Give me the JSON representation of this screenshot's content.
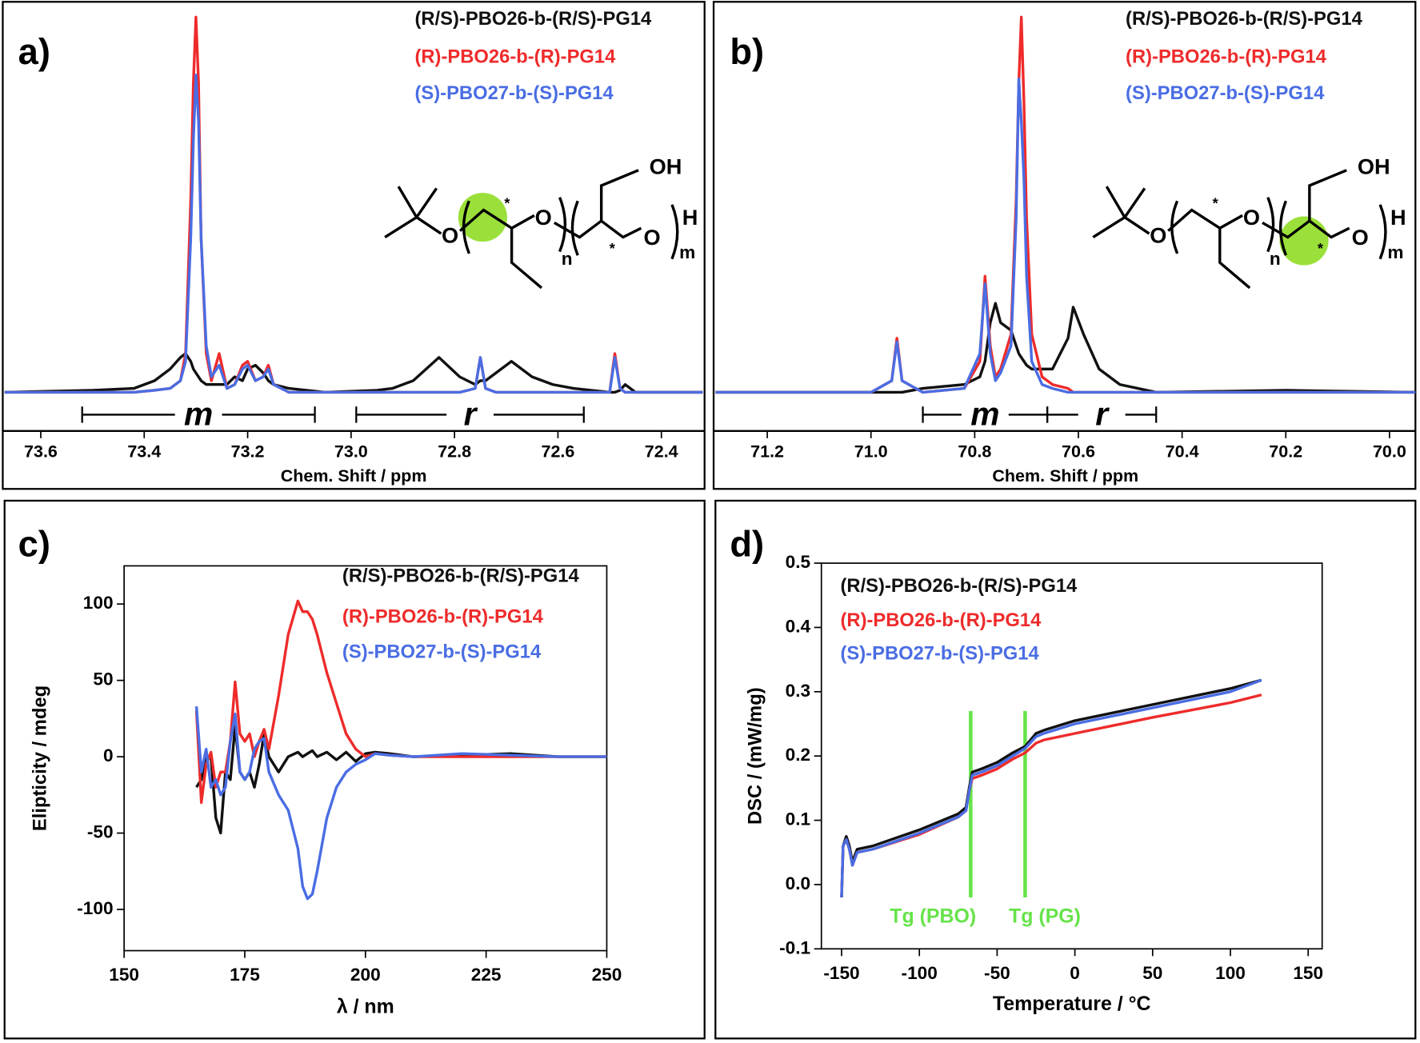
{
  "chart_data": [
    {
      "type": "line",
      "panel_label": "a)",
      "xlabel": "Chem. Shift / ppm",
      "x": [
        73.67,
        73.5,
        73.42,
        73.38,
        73.35,
        73.33,
        73.32,
        73.31,
        73.305,
        73.3,
        73.295,
        73.29,
        73.28,
        73.27,
        73.255,
        73.24,
        73.225,
        73.21,
        73.2,
        73.185,
        73.17,
        73.16,
        73.15,
        73.12,
        73.05,
        72.95,
        72.92,
        72.88,
        72.83,
        72.79,
        72.76,
        72.75,
        72.74,
        72.72,
        72.69,
        72.65,
        72.61,
        72.57,
        72.5,
        72.49,
        72.48,
        72.47,
        72.45,
        72.32
      ],
      "xlim": [
        73.67,
        72.32
      ],
      "xticks": [
        73.6,
        73.4,
        73.2,
        {
          "value": 73,
          "label": "73.0"
        },
        72.8,
        72.6,
        72.4
      ],
      "ylim": [
        -10,
        100
      ],
      "series": [
        {
          "name": "(R/S)-PBO26-b-(R/S)-PG14",
          "color": "#111111",
          "values": [
            0,
            0.5,
            1,
            3,
            6,
            9,
            10,
            8,
            6,
            5,
            4,
            3,
            2,
            2,
            2,
            2,
            4,
            3,
            6,
            7,
            5,
            3,
            2,
            1,
            0,
            0.5,
            1,
            3,
            9,
            4,
            2,
            3,
            3,
            5,
            8,
            4,
            2,
            1,
            0,
            0,
            0.5,
            2,
            0,
            0
          ]
        },
        {
          "name": "(R)-PBO26-b-(R)-PG14",
          "color": "#ee2b2b",
          "values": [
            0,
            0,
            0,
            0.5,
            1,
            3,
            10,
            50,
            80,
            97,
            80,
            40,
            10,
            3,
            10,
            1,
            2,
            7,
            8,
            3,
            4,
            7,
            2,
            0,
            0,
            0,
            0,
            0,
            0,
            0,
            1,
            9,
            1,
            0,
            0,
            0,
            0,
            0,
            0,
            10,
            1,
            0,
            0,
            0
          ]
        },
        {
          "name": "(S)-PBO27-b-(S)-PG14",
          "color": "#4a6de3",
          "values": [
            0,
            0,
            0,
            0.5,
            1,
            3,
            8,
            40,
            65,
            82,
            70,
            40,
            12,
            4,
            7,
            1,
            2,
            6,
            7,
            3,
            4,
            6,
            2,
            0,
            0,
            0,
            0,
            0,
            0,
            0,
            1,
            9,
            1,
            0,
            0,
            0,
            0,
            0,
            0,
            9,
            1,
            0,
            0,
            0
          ]
        }
      ],
      "brackets": [
        {
          "text": "m",
          "x": [
            73.52,
            73.07
          ]
        },
        {
          "text": "r",
          "x": [
            72.99,
            72.55
          ]
        }
      ],
      "structure_labels": [
        "O",
        "O",
        "O",
        "OH",
        "H",
        "n",
        "m",
        "*",
        "*"
      ]
    },
    {
      "type": "line",
      "panel_label": "b)",
      "xlabel": "Chem. Shift / ppm",
      "x": [
        71.3,
        71.0,
        70.96,
        70.95,
        70.94,
        70.9,
        70.82,
        70.79,
        70.78,
        70.77,
        70.76,
        70.75,
        70.73,
        70.72,
        70.715,
        70.71,
        70.705,
        70.7,
        70.69,
        70.67,
        70.65,
        70.62,
        70.61,
        70.59,
        70.56,
        70.52,
        70.45,
        70.2,
        69.95
      ],
      "xlim": [
        71.3,
        69.95
      ],
      "xticks": [
        71.2,
        {
          "value": 71,
          "label": "71.0"
        },
        70.8,
        70.6,
        70.4,
        70.2,
        {
          "value": 70,
          "label": "70.0"
        }
      ],
      "ylim": [
        -10,
        100
      ],
      "series": [
        {
          "name": "(R/S)-PBO26-b-(R/S)-PG14",
          "color": "#111111",
          "values": [
            0,
            0,
            0,
            0,
            0,
            1,
            2,
            4,
            8,
            18,
            23,
            18,
            16,
            12,
            10,
            9,
            8,
            7,
            6,
            6,
            6,
            14,
            22,
            15,
            6,
            2,
            0,
            0.5,
            0
          ]
        },
        {
          "name": "(R)-PBO26-b-(R)-PG14",
          "color": "#ee2b2b",
          "values": [
            0,
            0,
            3,
            14,
            3,
            0,
            1,
            8,
            30,
            12,
            4,
            6,
            15,
            50,
            80,
            97,
            75,
            45,
            15,
            4,
            2,
            1,
            0,
            0,
            0,
            0,
            0,
            0,
            0
          ]
        },
        {
          "name": "(S)-PBO27-b-(S)-PG14",
          "color": "#4a6de3",
          "values": [
            0,
            0,
            3,
            13,
            3,
            0,
            1,
            10,
            28,
            10,
            3,
            5,
            12,
            45,
            81,
            70,
            55,
            30,
            8,
            2,
            1,
            0,
            0,
            0,
            0,
            0,
            0,
            0,
            0
          ]
        }
      ],
      "brackets": [
        {
          "text": "m",
          "x": [
            70.9,
            70.66
          ]
        },
        {
          "text": "r",
          "x": [
            70.66,
            70.45
          ]
        }
      ],
      "structure_labels": [
        "O",
        "O",
        "O",
        "OH",
        "H",
        "n",
        "m",
        "*",
        "*"
      ]
    },
    {
      "type": "line",
      "panel_label": "c)",
      "xlabel": "λ / nm",
      "ylabel": "Elipticity / mdeg",
      "x": [
        165,
        166,
        167,
        168,
        169,
        170,
        171,
        172,
        173,
        174,
        175,
        176,
        177,
        178,
        179,
        180,
        182,
        184,
        186,
        187,
        188,
        189,
        190,
        192,
        194,
        196,
        198,
        200,
        202,
        205,
        210,
        220,
        230,
        240,
        250
      ],
      "xlim": [
        150,
        250
      ],
      "xticks": [
        150,
        175,
        200,
        225,
        250
      ],
      "ylim": [
        -127,
        125
      ],
      "yticks": [
        -100,
        -50,
        0,
        50,
        100
      ],
      "series": [
        {
          "name": "(R/S)-PBO26-b-(R/S)-PG14",
          "color": "#111111",
          "values": [
            -20,
            -15,
            0,
            0,
            -40,
            -50,
            -10,
            -15,
            20,
            -10,
            -15,
            -10,
            -20,
            -5,
            15,
            0,
            -10,
            0,
            3,
            0,
            2,
            4,
            0,
            3,
            -2,
            3,
            -3,
            2,
            3,
            2,
            0,
            1,
            2,
            0,
            0
          ]
        },
        {
          "name": "(R)-PBO26-b-(R)-PG14",
          "color": "#ee2b2b",
          "values": [
            30,
            -30,
            -5,
            3,
            -20,
            -10,
            -10,
            10,
            49,
            15,
            10,
            15,
            0,
            10,
            18,
            5,
            40,
            80,
            102,
            95,
            95,
            90,
            80,
            55,
            35,
            15,
            5,
            0,
            2,
            1,
            0,
            0,
            0,
            0,
            0
          ]
        },
        {
          "name": "(S)-PBO27-b-(S)-PG14",
          "color": "#4a6de3",
          "values": [
            33,
            -10,
            5,
            -20,
            -15,
            -25,
            -20,
            10,
            28,
            -10,
            -15,
            -10,
            5,
            10,
            12,
            -10,
            -25,
            -35,
            -60,
            -85,
            -93,
            -90,
            -75,
            -40,
            -20,
            -10,
            -5,
            -2,
            2,
            1,
            0,
            2,
            1,
            0,
            0
          ]
        }
      ]
    },
    {
      "type": "line",
      "panel_label": "d)",
      "xlabel": "Temperature / °C",
      "ylabel": "DSC / (mW/mg)",
      "x": [
        -150,
        -149,
        -147,
        -145,
        -143,
        -140,
        -130,
        -100,
        -75,
        -70,
        -68,
        -66,
        -60,
        -50,
        -40,
        -32,
        -25,
        -20,
        0,
        50,
        100,
        120
      ],
      "xlim": [
        -163,
        159
      ],
      "xticks": [
        -150,
        -100,
        -50,
        0,
        50,
        100,
        150
      ],
      "ylim": [
        -0.1,
        0.5
      ],
      "yticks": [
        -0.1,
        {
          "value": 0,
          "label": "0.0"
        },
        0.1,
        0.2,
        0.3,
        0.4,
        0.5
      ],
      "series": [
        {
          "name": "(R/S)-PBO26-b-(R/S)-PG14",
          "color": "#111111",
          "values": [
            -0.02,
            0.06,
            0.075,
            0.06,
            0.035,
            0.055,
            0.06,
            0.085,
            0.11,
            0.12,
            0.15,
            0.175,
            0.18,
            0.19,
            0.205,
            0.215,
            0.235,
            0.24,
            0.255,
            0.28,
            0.305,
            0.318
          ]
        },
        {
          "name": "(R)-PBO26-b-(R)-PG14",
          "color": "#ee2b2b",
          "values": [
            -0.02,
            0.06,
            0.07,
            0.055,
            0.03,
            0.05,
            0.055,
            0.078,
            0.105,
            0.115,
            0.145,
            0.165,
            0.17,
            0.18,
            0.195,
            0.205,
            0.22,
            0.225,
            0.235,
            0.26,
            0.283,
            0.295
          ]
        },
        {
          "name": "(S)-PBO27-b-(S)-PG14",
          "color": "#4a6de3",
          "values": [
            -0.02,
            0.06,
            0.07,
            0.055,
            0.03,
            0.05,
            0.055,
            0.08,
            0.105,
            0.115,
            0.145,
            0.17,
            0.175,
            0.185,
            0.2,
            0.212,
            0.23,
            0.235,
            0.25,
            0.275,
            0.3,
            0.318
          ]
        }
      ],
      "vline_color": "#66e34a",
      "vlines": [
        {
          "x": -67,
          "y": [
            -0.02,
            0.27
          ],
          "label": "Tg (PBO)"
        },
        {
          "x": -32,
          "y": [
            -0.02,
            0.27
          ],
          "label": "Tg (PG)"
        }
      ]
    }
  ]
}
